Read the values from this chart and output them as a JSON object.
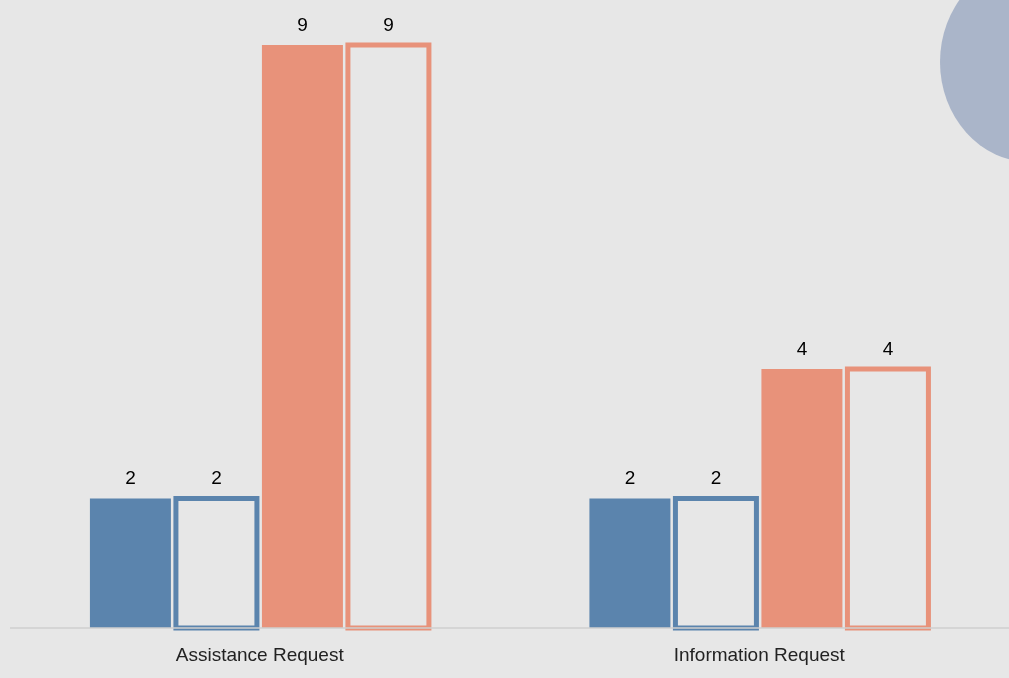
{
  "chart_data": {
    "type": "bar",
    "categories": [
      "Assistance Request",
      "Information Request"
    ],
    "series": [
      {
        "color": "#5b84ad",
        "values": [
          2,
          2
        ]
      },
      {
        "color": "#5b84ad",
        "values": [
          2,
          2
        ]
      },
      {
        "color": "#e8927a",
        "values": [
          9,
          4
        ]
      },
      {
        "color": "#e8927a",
        "values": [
          9,
          4
        ]
      }
    ],
    "data_labels": true,
    "grid": false,
    "legend": false
  }
}
